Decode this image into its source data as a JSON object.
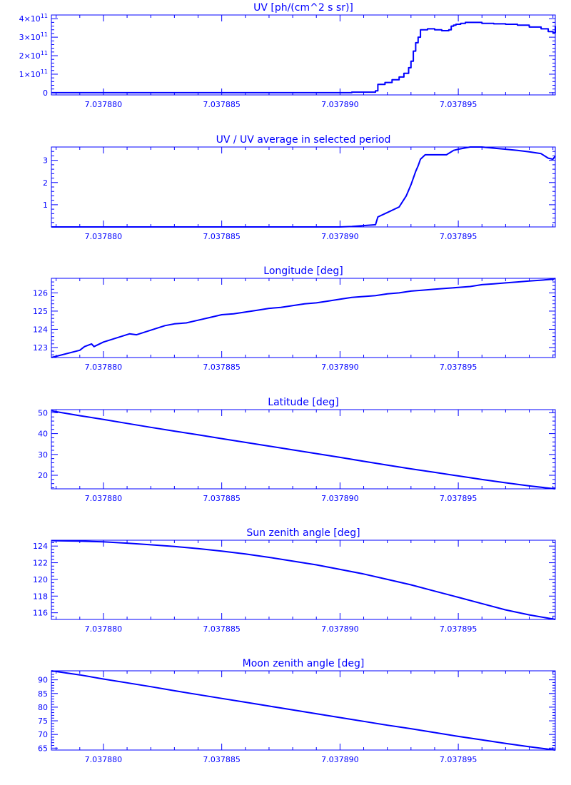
{
  "colors": {
    "line": "#0000ff",
    "background": "#ffffff"
  },
  "chart_data": [
    {
      "type": "line",
      "title": "UV [ph/(cm^2 s sr)]",
      "xlabel": "",
      "ylabel": "",
      "x_ticks": [
        "7.037880",
        "7.037885",
        "7.037890",
        "7.037895"
      ],
      "x_tick_values": [
        7.03788,
        7.037885,
        7.03789,
        7.037895
      ],
      "xlim": [
        7.0378778,
        7.0378991
      ],
      "y_ticks": [
        {
          "value": 0,
          "mantissa": "0",
          "exponent": ""
        },
        {
          "value": 100000000000.0,
          "mantissa": "1×10",
          "exponent": "11"
        },
        {
          "value": 200000000000.0,
          "mantissa": "2×10",
          "exponent": "11"
        },
        {
          "value": 300000000000.0,
          "mantissa": "3×10",
          "exponent": "11"
        },
        {
          "value": 400000000000.0,
          "mantissa": "4×10",
          "exponent": "11"
        }
      ],
      "ylim": [
        -12000000000.0,
        420000000000.0
      ],
      "step": true,
      "series": [
        {
          "x": [
            7.0378778,
            7.03789,
            7.0378905,
            7.0378915,
            7.0378916,
            7.0378919,
            7.0378922,
            7.0378925,
            7.0378927,
            7.0378929,
            7.037893,
            7.0378931,
            7.0378932,
            7.0378933,
            7.0378934,
            7.0378935,
            7.0378937,
            7.0378938,
            7.037894,
            7.0378941,
            7.0378942,
            7.0378943,
            7.0378946,
            7.0378947,
            7.0378948,
            7.0378949,
            7.037895,
            7.0378951,
            7.0378953,
            7.0378955,
            7.0378957,
            7.037896,
            7.0378965,
            7.037897,
            7.0378975,
            7.037898,
            7.0378985,
            7.0378988,
            7.037899,
            7.0378991
          ],
          "y": [
            0,
            0,
            3000000000.0,
            10000000000.0,
            45000000000.0,
            55000000000.0,
            70000000000.0,
            85000000000.0,
            105000000000.0,
            135000000000.0,
            170000000000.0,
            225000000000.0,
            270000000000.0,
            300000000000.0,
            340000000000.0,
            340000000000.0,
            345000000000.0,
            345000000000.0,
            340000000000.0,
            340000000000.0,
            340000000000.0,
            335000000000.0,
            340000000000.0,
            360000000000.0,
            365000000000.0,
            370000000000.0,
            370000000000.0,
            375000000000.0,
            380000000000.0,
            380000000000.0,
            380000000000.0,
            375000000000.0,
            372000000000.0,
            370000000000.0,
            365000000000.0,
            355000000000.0,
            345000000000.0,
            330000000000.0,
            325000000000.0,
            360000000000.0
          ]
        }
      ]
    },
    {
      "type": "line",
      "title": "UV / UV average in selected period",
      "xlabel": "",
      "ylabel": "",
      "x_ticks": [
        "7.037880",
        "7.037885",
        "7.037890",
        "7.037895"
      ],
      "x_tick_values": [
        7.03788,
        7.037885,
        7.03789,
        7.037895
      ],
      "xlim": [
        7.0378778,
        7.0378991
      ],
      "y_ticks": [
        {
          "value": 1,
          "mantissa": "1",
          "exponent": ""
        },
        {
          "value": 2,
          "mantissa": "2",
          "exponent": ""
        },
        {
          "value": 3,
          "mantissa": "3",
          "exponent": ""
        }
      ],
      "ylim": [
        0,
        3.6
      ],
      "series": [
        {
          "x": [
            7.0378778,
            7.03789,
            7.0378905,
            7.0378915,
            7.0378916,
            7.037892,
            7.0378925,
            7.0378928,
            7.037893,
            7.0378931,
            7.0378932,
            7.0378933,
            7.0378934,
            7.0378936,
            7.037894,
            7.0378943,
            7.0378945,
            7.0378948,
            7.037895,
            7.0378955,
            7.037896,
            7.0378965,
            7.037897,
            7.0378975,
            7.037898,
            7.0378985,
            7.0378988,
            7.037899,
            7.0378991
          ],
          "y": [
            0,
            0,
            0.02,
            0.1,
            0.45,
            0.65,
            0.9,
            1.4,
            1.9,
            2.2,
            2.5,
            2.75,
            3.05,
            3.25,
            3.25,
            3.25,
            3.25,
            3.45,
            3.5,
            3.6,
            3.6,
            3.55,
            3.5,
            3.45,
            3.38,
            3.3,
            3.1,
            3.05,
            3.2
          ]
        }
      ]
    },
    {
      "type": "line",
      "title": "Longitude [deg]",
      "xlabel": "",
      "ylabel": "",
      "x_ticks": [
        "7.037880",
        "7.037885",
        "7.037890",
        "7.037895"
      ],
      "x_tick_values": [
        7.03788,
        7.037885,
        7.03789,
        7.037895
      ],
      "xlim": [
        7.0378778,
        7.0378991
      ],
      "y_ticks": [
        {
          "value": 123,
          "mantissa": "123",
          "exponent": ""
        },
        {
          "value": 124,
          "mantissa": "124",
          "exponent": ""
        },
        {
          "value": 125,
          "mantissa": "125",
          "exponent": ""
        },
        {
          "value": 126,
          "mantissa": "126",
          "exponent": ""
        }
      ],
      "ylim": [
        122.45,
        126.8
      ],
      "series": [
        {
          "x": [
            7.0378778,
            7.037879,
            7.0378792,
            7.0378795,
            7.0378796,
            7.03788,
            7.0378811,
            7.0378814,
            7.037882,
            7.0378826,
            7.037883,
            7.0378835,
            7.037884,
            7.0378845,
            7.037885,
            7.0378855,
            7.037886,
            7.0378865,
            7.037887,
            7.0378875,
            7.037888,
            7.0378885,
            7.037889,
            7.0378895,
            7.03789,
            7.0378905,
            7.037891,
            7.0378915,
            7.037892,
            7.0378925,
            7.037893,
            7.0378935,
            7.037894,
            7.0378945,
            7.037895,
            7.0378955,
            7.037896,
            7.0378965,
            7.037897,
            7.0378975,
            7.037898,
            7.0378985,
            7.037899,
            7.0378991
          ],
          "y": [
            122.45,
            122.85,
            123.05,
            123.2,
            123.05,
            123.3,
            123.75,
            123.7,
            123.95,
            124.2,
            124.3,
            124.35,
            124.5,
            124.65,
            124.8,
            124.85,
            124.95,
            125.05,
            125.15,
            125.2,
            125.3,
            125.4,
            125.45,
            125.55,
            125.65,
            125.75,
            125.8,
            125.85,
            125.95,
            126.0,
            126.1,
            126.15,
            126.2,
            126.25,
            126.3,
            126.35,
            126.45,
            126.5,
            126.55,
            126.6,
            126.65,
            126.7,
            126.75,
            126.8
          ]
        }
      ]
    },
    {
      "type": "line",
      "title": "Latitude [deg]",
      "xlabel": "",
      "ylabel": "",
      "x_ticks": [
        "7.037880",
        "7.037885",
        "7.037890",
        "7.037895"
      ],
      "x_tick_values": [
        7.03788,
        7.037885,
        7.03789,
        7.037895
      ],
      "xlim": [
        7.0378778,
        7.0378991
      ],
      "y_ticks": [
        {
          "value": 20,
          "mantissa": "20",
          "exponent": ""
        },
        {
          "value": 30,
          "mantissa": "30",
          "exponent": ""
        },
        {
          "value": 40,
          "mantissa": "40",
          "exponent": ""
        },
        {
          "value": 50,
          "mantissa": "50",
          "exponent": ""
        }
      ],
      "ylim": [
        13.5,
        51.5
      ],
      "series": [
        {
          "x": [
            7.0378778,
            7.037878,
            7.037879,
            7.03788,
            7.037881,
            7.037882,
            7.037883,
            7.037884,
            7.037885,
            7.037886,
            7.037887,
            7.037888,
            7.037889,
            7.03789,
            7.037891,
            7.037892,
            7.037893,
            7.037894,
            7.037895,
            7.037896,
            7.037897,
            7.037898,
            7.0378991
          ],
          "y": [
            51.0,
            50.5,
            48.6,
            46.8,
            44.9,
            43.0,
            41.2,
            39.4,
            37.6,
            35.8,
            34.0,
            32.2,
            30.4,
            28.6,
            26.7,
            24.9,
            23.1,
            21.4,
            19.7,
            18.0,
            16.4,
            14.9,
            13.5
          ]
        }
      ]
    },
    {
      "type": "line",
      "title": "Sun zenith angle [deg]",
      "xlabel": "",
      "ylabel": "",
      "x_ticks": [
        "7.037880",
        "7.037885",
        "7.037890",
        "7.037895"
      ],
      "x_tick_values": [
        7.03788,
        7.037885,
        7.03789,
        7.037895
      ],
      "xlim": [
        7.0378778,
        7.0378991
      ],
      "y_ticks": [
        {
          "value": 116,
          "mantissa": "116",
          "exponent": ""
        },
        {
          "value": 118,
          "mantissa": "118",
          "exponent": ""
        },
        {
          "value": 120,
          "mantissa": "120",
          "exponent": ""
        },
        {
          "value": 122,
          "mantissa": "122",
          "exponent": ""
        },
        {
          "value": 124,
          "mantissa": "124",
          "exponent": ""
        }
      ],
      "ylim": [
        115.2,
        124.7
      ],
      "series": [
        {
          "x": [
            7.0378778,
            7.037879,
            7.03788,
            7.037881,
            7.037882,
            7.037883,
            7.037884,
            7.037885,
            7.037886,
            7.037887,
            7.037888,
            7.037889,
            7.03789,
            7.037891,
            7.037892,
            7.037893,
            7.037894,
            7.037895,
            7.037896,
            7.037897,
            7.037898,
            7.0378991
          ],
          "y": [
            124.65,
            124.6,
            124.5,
            124.35,
            124.15,
            123.95,
            123.7,
            123.4,
            123.05,
            122.65,
            122.2,
            121.75,
            121.2,
            120.65,
            120.0,
            119.35,
            118.6,
            117.85,
            117.1,
            116.35,
            115.75,
            115.2
          ]
        }
      ]
    },
    {
      "type": "line",
      "title": "Moon zenith angle [deg]",
      "xlabel": "",
      "ylabel": "",
      "x_ticks": [
        "7.037880",
        "7.037885",
        "7.037890",
        "7.037895"
      ],
      "x_tick_values": [
        7.03788,
        7.037885,
        7.03789,
        7.037895
      ],
      "xlim": [
        7.0378778,
        7.0378991
      ],
      "y_ticks": [
        {
          "value": 65,
          "mantissa": "65",
          "exponent": ""
        },
        {
          "value": 70,
          "mantissa": "70",
          "exponent": ""
        },
        {
          "value": 75,
          "mantissa": "75",
          "exponent": ""
        },
        {
          "value": 80,
          "mantissa": "80",
          "exponent": ""
        },
        {
          "value": 85,
          "mantissa": "85",
          "exponent": ""
        },
        {
          "value": 90,
          "mantissa": "90",
          "exponent": ""
        }
      ],
      "ylim": [
        64.3,
        93.3
      ],
      "series": [
        {
          "x": [
            7.0378778,
            7.037879,
            7.03788,
            7.037881,
            7.037882,
            7.037883,
            7.037884,
            7.037885,
            7.037886,
            7.037887,
            7.037888,
            7.037889,
            7.03789,
            7.037891,
            7.037892,
            7.037893,
            7.037894,
            7.037895,
            7.037896,
            7.037897,
            7.037898,
            7.0378991
          ],
          "y": [
            93.3,
            91.8,
            90.3,
            88.9,
            87.5,
            86.0,
            84.6,
            83.2,
            81.8,
            80.4,
            79.0,
            77.6,
            76.2,
            74.8,
            73.4,
            72.1,
            70.7,
            69.3,
            68.0,
            66.7,
            65.5,
            64.3
          ]
        }
      ]
    }
  ]
}
